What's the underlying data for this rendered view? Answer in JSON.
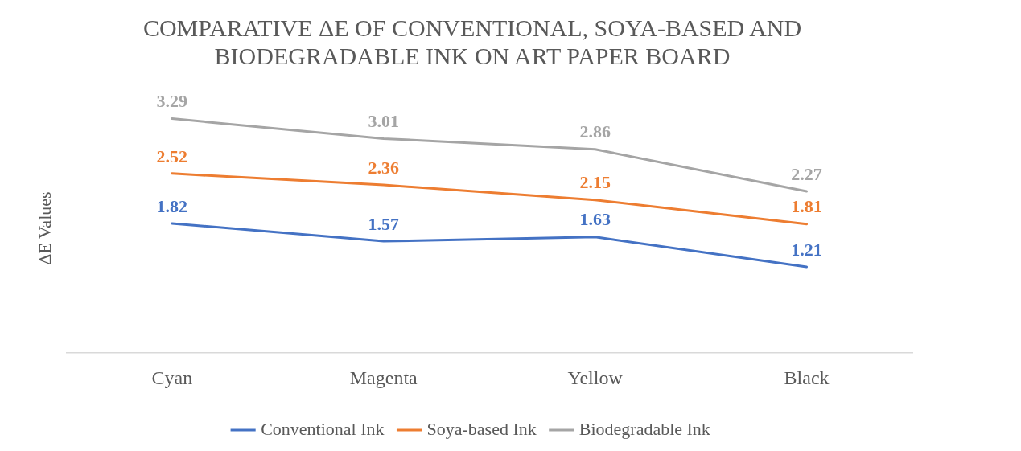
{
  "chart_data": {
    "type": "line",
    "title": "COMPARATIVE ΔE OF CONVENTIONAL, SOYA-BASED AND BIODEGRADABLE INK ON ART PAPER BOARD",
    "ylabel": "ΔE Values",
    "categories": [
      "Cyan",
      "Magenta",
      "Yellow",
      "Black"
    ],
    "series": [
      {
        "name": "Conventional Ink",
        "color": "#4472c4",
        "values": [
          1.82,
          1.57,
          1.63,
          1.21
        ]
      },
      {
        "name": "Soya-based Ink",
        "color": "#ed7d31",
        "values": [
          2.52,
          2.36,
          2.15,
          1.81
        ]
      },
      {
        "name": "Biodegradable Ink",
        "color": "#a5a5a5",
        "values": [
          3.29,
          3.01,
          2.86,
          2.27
        ]
      }
    ],
    "tick_labels": "x",
    "grid": false,
    "legend": "bottom",
    "marker": "none",
    "line_style": "solid",
    "data_labels": true
  }
}
